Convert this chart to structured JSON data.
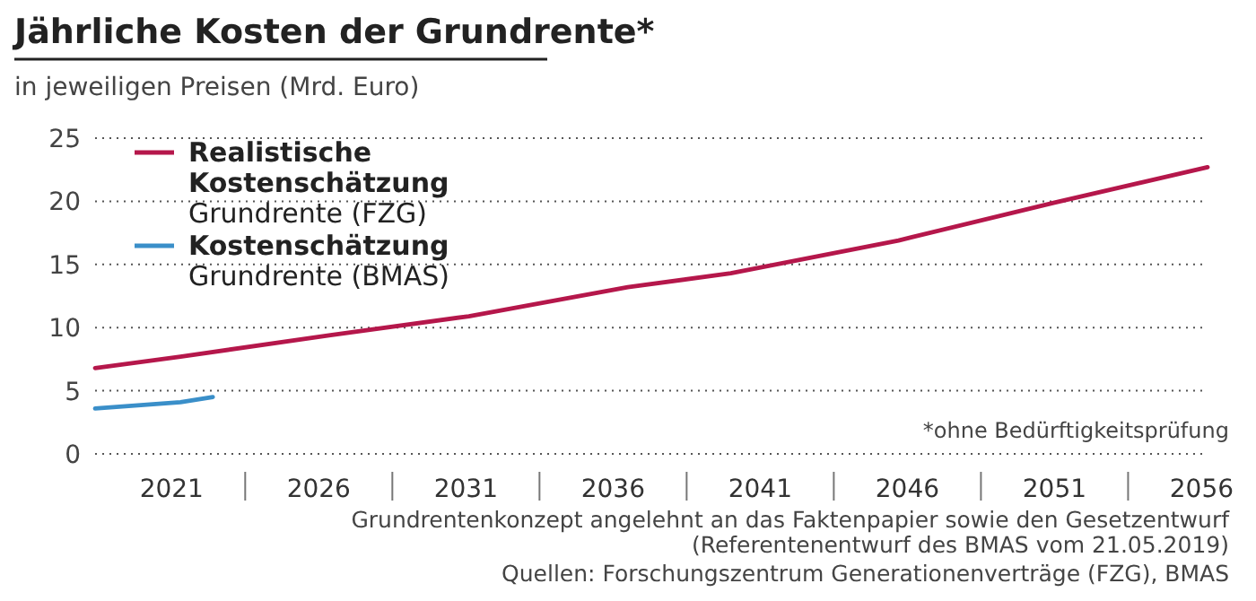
{
  "chart_data": {
    "type": "line",
    "title": "Jährliche Kosten der Grundrente*",
    "subtitle": "in jeweiligen Preisen (Mrd. Euro)",
    "annotations": [
      "*ohne Bedürftigkeitsprüfung",
      "Grundrentenkonzept angelehnt an das Faktenpapier sowie den Gesetzentwurf\n(Referentenentwurf des BMAS vom 21.05.2019)",
      "Quellen: Forschungszentrum Generationenverträge (FZG), BMAS"
    ],
    "series": [
      {
        "name": "Realistische\nKostenschätzung\nGrundrente (FZG)",
        "color": "#b5174b",
        "x": [
          2018.4,
          2021.3,
          2026.4,
          2031.1,
          2036.5,
          2040.0,
          2045.7,
          2051.0,
          2056.2
        ],
        "values": [
          6.8,
          7.7,
          9.4,
          10.9,
          13.2,
          14.3,
          16.9,
          19.9,
          22.7
        ]
      },
      {
        "name": "Kostenschätzung\nGrundrente (BMAS)",
        "color": "#3a8fc9",
        "x": [
          2018.4,
          2021.3,
          2022.4
        ],
        "values": [
          3.6,
          4.1,
          4.5
        ]
      }
    ],
    "xlim": [
      2018.4,
      2056.2
    ],
    "xticks": [
      2021,
      2026,
      2031,
      2036,
      2041,
      2046,
      2051,
      2056
    ],
    "ylim": [
      0,
      25
    ],
    "yticks": [
      0,
      5,
      10,
      15,
      20,
      25
    ],
    "grid": "y",
    "legend": "top left",
    "line_style": "solid",
    "marker": "none"
  }
}
